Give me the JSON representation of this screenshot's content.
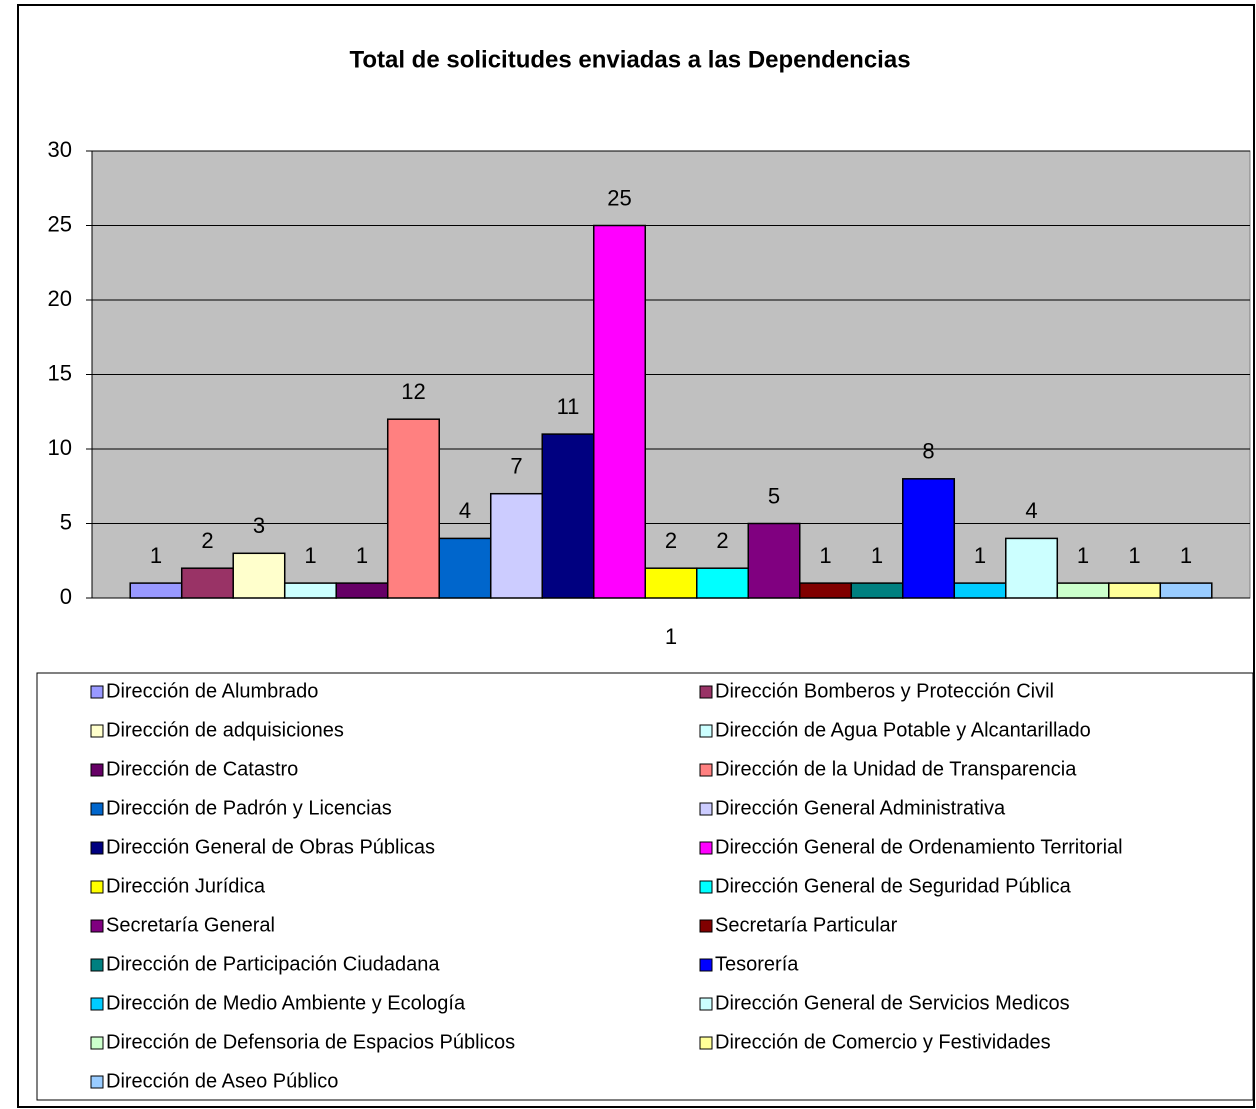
{
  "chart_data": {
    "type": "bar",
    "title": "Total de solicitudes enviadas a las Dependencias",
    "categories": [
      "1"
    ],
    "ylim": [
      0,
      30
    ],
    "yticks": [
      0,
      5,
      10,
      15,
      20,
      25,
      30
    ],
    "grid": true,
    "legend": "bottom",
    "series": [
      {
        "name": "Dirección de Alumbrado",
        "color": "#9999ff",
        "values": [
          1
        ]
      },
      {
        "name": "Dirección Bomberos y Protección Civil",
        "color": "#993366",
        "values": [
          2
        ]
      },
      {
        "name": "Dirección de adquisiciones",
        "color": "#ffffcc",
        "values": [
          3
        ]
      },
      {
        "name": "Dirección de Agua Potable y Alcantarillado",
        "color": "#ccffff",
        "values": [
          1
        ]
      },
      {
        "name": "Dirección de Catastro",
        "color": "#660066",
        "values": [
          1
        ]
      },
      {
        "name": "Dirección de la Unidad de Transparencia",
        "color": "#ff8080",
        "values": [
          12
        ]
      },
      {
        "name": "Dirección de Padrón y Licencias",
        "color": "#0066cc",
        "values": [
          4
        ]
      },
      {
        "name": "Dirección General Administrativa",
        "color": "#ccccff",
        "values": [
          7
        ]
      },
      {
        "name": "Dirección General de Obras Públicas",
        "color": "#000080",
        "values": [
          11
        ]
      },
      {
        "name": "Dirección General de Ordenamiento Territorial",
        "color": "#ff00ff",
        "values": [
          25
        ]
      },
      {
        "name": "Dirección Jurídica",
        "color": "#ffff00",
        "values": [
          2
        ]
      },
      {
        "name": "Dirección General de Seguridad Pública",
        "color": "#00ffff",
        "values": [
          2
        ]
      },
      {
        "name": "Secretaría General",
        "color": "#800080",
        "values": [
          5
        ]
      },
      {
        "name": "Secretaría Particular",
        "color": "#800000",
        "values": [
          1
        ]
      },
      {
        "name": "Dirección de Participación Ciudadana",
        "color": "#008080",
        "values": [
          1
        ]
      },
      {
        "name": "Tesorería",
        "color": "#0000ff",
        "values": [
          8
        ]
      },
      {
        "name": "Dirección de Medio Ambiente y Ecología",
        "color": "#00ccff",
        "values": [
          1
        ]
      },
      {
        "name": "Dirección General de Servicios Medicos",
        "color": "#ccffff",
        "values": [
          4
        ]
      },
      {
        "name": "Dirección de Defensoria de Espacios Públicos",
        "color": "#ccffcc",
        "values": [
          1
        ]
      },
      {
        "name": "Dirección de Comercio y Festividades",
        "color": "#ffff99",
        "values": [
          1
        ]
      },
      {
        "name": "Dirección de Aseo Público",
        "color": "#99ccff",
        "values": [
          1
        ]
      }
    ]
  }
}
